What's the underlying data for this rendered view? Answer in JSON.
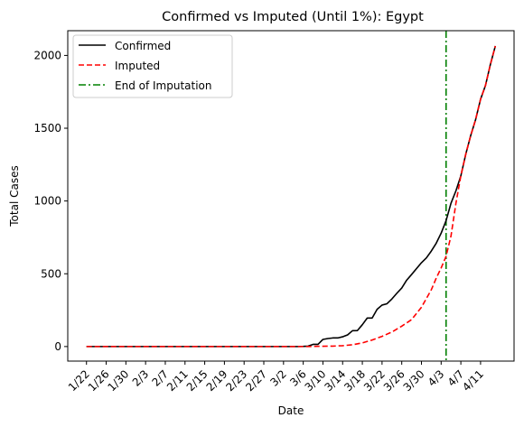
{
  "chart_data": {
    "type": "line",
    "title": "Confirmed vs Imputed (Until 1%): Egypt",
    "xlabel": "Date",
    "ylabel": "Total Cases",
    "x_start": "1/22",
    "x_tick_labels": [
      "1/22",
      "1/26",
      "1/30",
      "2/3",
      "2/7",
      "2/11",
      "2/15",
      "2/19",
      "2/23",
      "2/27",
      "3/2",
      "3/6",
      "3/10",
      "3/14",
      "3/18",
      "3/22",
      "3/26",
      "3/30",
      "4/3",
      "4/7",
      "4/11"
    ],
    "x_tick_step_days": 4,
    "ylim": [
      -100,
      2170
    ],
    "y_ticks": [
      0,
      500,
      1000,
      1500,
      2000
    ],
    "legend_position": "top-left",
    "end_of_imputation_day": 73,
    "series": [
      {
        "name": "Confirmed",
        "color": "#000000",
        "style": "solid",
        "points": [
          [
            0,
            0
          ],
          [
            43,
            0
          ],
          [
            44,
            1
          ],
          [
            45,
            3
          ],
          [
            46,
            15
          ],
          [
            47,
            15
          ],
          [
            48,
            49
          ],
          [
            49,
            55
          ],
          [
            50,
            59
          ],
          [
            51,
            59
          ],
          [
            52,
            67
          ],
          [
            53,
            80
          ],
          [
            54,
            109
          ],
          [
            55,
            110
          ],
          [
            56,
            150
          ],
          [
            57,
            196
          ],
          [
            58,
            196
          ],
          [
            59,
            256
          ],
          [
            60,
            285
          ],
          [
            61,
            294
          ],
          [
            62,
            327
          ],
          [
            63,
            366
          ],
          [
            64,
            402
          ],
          [
            65,
            456
          ],
          [
            66,
            495
          ],
          [
            67,
            536
          ],
          [
            68,
            576
          ],
          [
            69,
            609
          ],
          [
            70,
            656
          ],
          [
            71,
            710
          ],
          [
            72,
            779
          ],
          [
            73,
            865
          ],
          [
            74,
            985
          ],
          [
            75,
            1070
          ],
          [
            76,
            1173
          ],
          [
            77,
            1322
          ],
          [
            78,
            1450
          ],
          [
            79,
            1560
          ],
          [
            80,
            1699
          ],
          [
            81,
            1794
          ],
          [
            82,
            1939
          ],
          [
            83,
            2065
          ]
        ]
      },
      {
        "name": "Imputed",
        "color": "#ff0000",
        "style": "dashed",
        "points": [
          [
            0,
            0
          ],
          [
            45,
            0
          ],
          [
            46,
            1
          ],
          [
            48,
            2
          ],
          [
            50,
            3
          ],
          [
            52,
            6
          ],
          [
            54,
            12
          ],
          [
            56,
            25
          ],
          [
            58,
            45
          ],
          [
            60,
            70
          ],
          [
            62,
            100
          ],
          [
            64,
            140
          ],
          [
            66,
            185
          ],
          [
            68,
            270
          ],
          [
            70,
            390
          ],
          [
            71,
            470
          ],
          [
            72,
            540
          ],
          [
            73,
            620
          ],
          [
            74,
            760
          ],
          [
            75,
            985
          ],
          [
            76,
            1173
          ],
          [
            77,
            1322
          ],
          [
            78,
            1450
          ],
          [
            79,
            1560
          ],
          [
            80,
            1699
          ],
          [
            81,
            1794
          ],
          [
            82,
            1939
          ],
          [
            83,
            2065
          ]
        ]
      }
    ],
    "vline": {
      "name": "End of Imputation",
      "color": "#008000",
      "style": "dashdot"
    }
  }
}
